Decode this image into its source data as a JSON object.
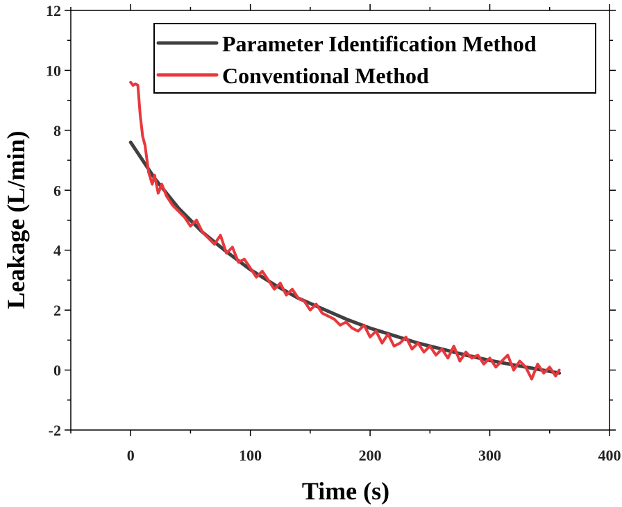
{
  "chart_data": {
    "type": "line",
    "xlabel": "Time (s)",
    "ylabel": "Leakage (L/min)",
    "xlim": [
      -50,
      400
    ],
    "ylim": [
      -2,
      12
    ],
    "xticks": [
      0,
      100,
      200,
      300,
      400
    ],
    "yticks": [
      -2,
      0,
      2,
      4,
      6,
      8,
      10,
      12
    ],
    "grid": false,
    "legend_position": "top-right",
    "series": [
      {
        "name": "Parameter Identification Method",
        "color": "#404040",
        "x": [
          0,
          20,
          40,
          60,
          80,
          100,
          120,
          140,
          160,
          180,
          200,
          220,
          240,
          260,
          280,
          300,
          320,
          340,
          358
        ],
        "y": [
          7.6,
          6.4,
          5.4,
          4.6,
          3.95,
          3.35,
          2.85,
          2.4,
          2.05,
          1.7,
          1.4,
          1.15,
          0.9,
          0.7,
          0.5,
          0.32,
          0.17,
          0.03,
          -0.1
        ]
      },
      {
        "name": "Conventional Method",
        "color": "#e8383d",
        "x": [
          0,
          2,
          4,
          6,
          8,
          10,
          12,
          15,
          18,
          20,
          23,
          26,
          30,
          35,
          40,
          45,
          50,
          55,
          60,
          65,
          70,
          75,
          80,
          85,
          90,
          95,
          100,
          105,
          110,
          115,
          120,
          125,
          130,
          135,
          140,
          145,
          150,
          155,
          160,
          165,
          170,
          175,
          180,
          185,
          190,
          195,
          200,
          205,
          210,
          215,
          220,
          225,
          230,
          235,
          240,
          245,
          250,
          255,
          260,
          265,
          270,
          275,
          280,
          285,
          290,
          295,
          300,
          305,
          310,
          315,
          320,
          325,
          330,
          335,
          340,
          345,
          350,
          355,
          358
        ],
        "y": [
          9.6,
          9.5,
          9.55,
          9.5,
          8.5,
          7.8,
          7.5,
          6.6,
          6.2,
          6.5,
          5.9,
          6.2,
          5.8,
          5.5,
          5.3,
          5.1,
          4.8,
          5.0,
          4.6,
          4.4,
          4.2,
          4.5,
          3.9,
          4.1,
          3.6,
          3.7,
          3.4,
          3.1,
          3.3,
          3.0,
          2.7,
          2.9,
          2.5,
          2.7,
          2.4,
          2.3,
          2.0,
          2.2,
          1.9,
          1.8,
          1.7,
          1.5,
          1.6,
          1.4,
          1.3,
          1.5,
          1.1,
          1.3,
          0.9,
          1.2,
          0.8,
          0.9,
          1.1,
          0.7,
          0.9,
          0.6,
          0.8,
          0.5,
          0.7,
          0.4,
          0.8,
          0.3,
          0.6,
          0.4,
          0.5,
          0.2,
          0.4,
          0.1,
          0.3,
          0.5,
          0.0,
          0.3,
          0.1,
          -0.3,
          0.2,
          -0.1,
          0.1,
          -0.2,
          0.0
        ]
      }
    ]
  }
}
